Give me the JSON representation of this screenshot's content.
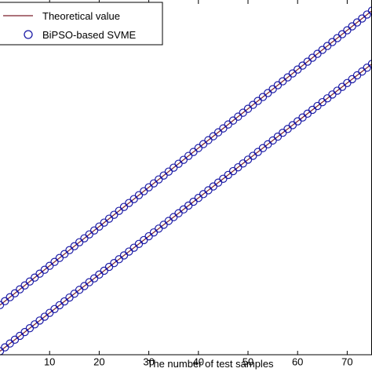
{
  "chart_data": {
    "type": "line",
    "title": "",
    "xlabel": "The number of test samples",
    "ylabel": "",
    "xlim": [
      0,
      75
    ],
    "ylim": [
      0,
      100
    ],
    "x_ticks": [
      10,
      20,
      30,
      40,
      50,
      60,
      70
    ],
    "grid": false,
    "legend_position": "top-left",
    "series": [
      {
        "name": "Theoretical value",
        "style": "line",
        "color": "#7a1f2b",
        "lines": [
          {
            "x": [
              0,
              75
            ],
            "y": [
              14,
              97
            ]
          },
          {
            "x": [
              0,
              75
            ],
            "y": [
              1,
              82
            ]
          }
        ]
      },
      {
        "name": "BiPSO-based SVME",
        "style": "circle-markers",
        "color": "#1a1aa6",
        "lines": [
          {
            "x_start": 0,
            "x_end": 75,
            "x_step": 1,
            "y_start": 14,
            "y_end": 97
          },
          {
            "x_start": 0,
            "x_end": 75,
            "x_step": 1,
            "y_start": 1,
            "y_end": 82
          }
        ]
      }
    ]
  },
  "colors": {
    "theory_line": "#7a1f2b",
    "marker": "#1a1aa6",
    "axis": "#000000",
    "background": "#ffffff"
  }
}
